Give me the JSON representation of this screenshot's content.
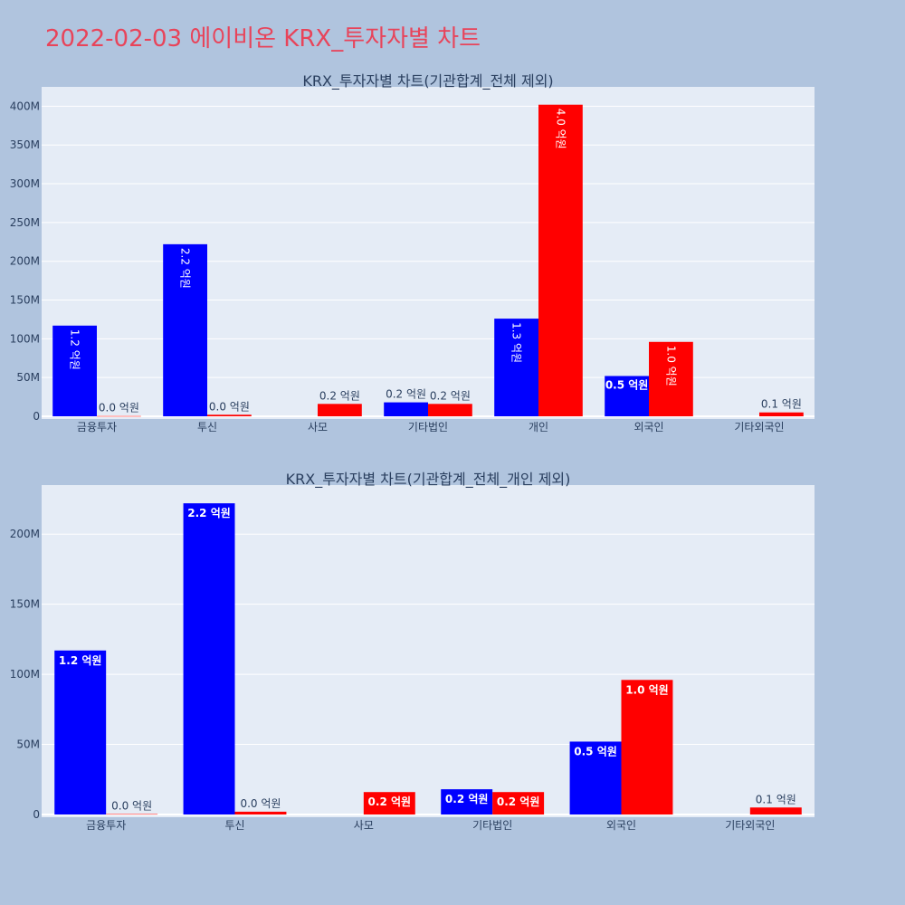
{
  "title": "2022-02-03 에이비온 KRX_투자자별 차트",
  "colors": {
    "buy": "#0000ff",
    "sell": "#ff0000",
    "title": "#e8445a",
    "plot_bg": "#e5ecf6",
    "paper_bg": "#b0c4de"
  },
  "chart_data": [
    {
      "type": "bar",
      "title": "KRX_투자자별 차트(기관합계_전체 제외)",
      "categories": [
        "금융투자",
        "투신",
        "사모",
        "기타법인",
        "개인",
        "외국인",
        "기타외국인"
      ],
      "series": [
        {
          "color": "#0000ff",
          "values": [
            117000000,
            222000000,
            0,
            18000000,
            126000000,
            52000000,
            0
          ],
          "labels": [
            "1.2 억원",
            "2.2 억원",
            "",
            "0.2 억원",
            "1.3 억원",
            "0.5 억원",
            ""
          ]
        },
        {
          "color": "#ff0000",
          "values": [
            300000,
            2000000,
            16000000,
            16000000,
            402000000,
            96000000,
            5000000
          ],
          "labels": [
            "0.0 억원",
            "0.0 억원",
            "0.2 억원",
            "0.2 억원",
            "4.0 억원",
            "1.0 억원",
            "0.1 억원"
          ]
        }
      ],
      "ylim": [
        0,
        425000000
      ],
      "yticks": [
        0,
        50000000,
        100000000,
        150000000,
        200000000,
        250000000,
        300000000,
        350000000,
        400000000
      ],
      "yticklabels": [
        "0",
        "50M",
        "100M",
        "150M",
        "200M",
        "250M",
        "300M",
        "350M",
        "400M"
      ],
      "label_orientation": "vertical",
      "grid": true
    },
    {
      "type": "bar",
      "title": "KRX_투자자별 차트(기관합계_전체_개인 제외)",
      "categories": [
        "금융투자",
        "투신",
        "사모",
        "기타법인",
        "외국인",
        "기타외국인"
      ],
      "series": [
        {
          "color": "#0000ff",
          "values": [
            117000000,
            222000000,
            0,
            18000000,
            52000000,
            0
          ],
          "labels": [
            "1.2 억원",
            "2.2 억원",
            "",
            "0.2 억원",
            "0.5 억원",
            ""
          ]
        },
        {
          "color": "#ff0000",
          "values": [
            300000,
            2000000,
            16000000,
            16000000,
            96000000,
            5000000
          ],
          "labels": [
            "0.0 억원",
            "0.0 억원",
            "0.2 억원",
            "0.2 억원",
            "1.0 억원",
            "0.1 억원"
          ]
        }
      ],
      "ylim": [
        0,
        235000000
      ],
      "yticks": [
        0,
        50000000,
        100000000,
        150000000,
        200000000
      ],
      "yticklabels": [
        "0",
        "50M",
        "100M",
        "150M",
        "200M"
      ],
      "label_orientation": "horizontal",
      "grid": true
    }
  ]
}
